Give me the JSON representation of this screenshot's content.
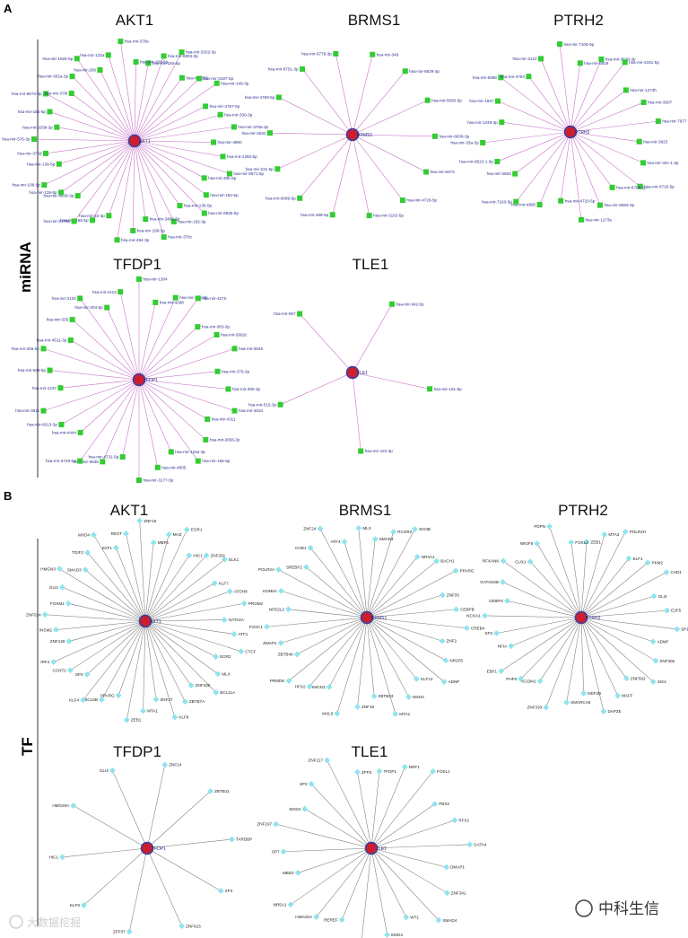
{
  "panels": [
    {
      "letter": "A",
      "row_label": "miRNA"
    },
    {
      "letter": "B",
      "row_label": "TF"
    }
  ],
  "colors": {
    "mirna_node": "#33cc33",
    "tf_node": "#8fe3ef",
    "center_fill": "#cc1e2e",
    "center_stroke": "#3a3fa0",
    "mirna_edge": "#c873c8",
    "tf_edge": "#7a7a7a"
  },
  "networks": [
    {
      "panel": "A",
      "gene": "AKT1",
      "kind": "mirna",
      "nodes": [
        "hsa-mir-150-5p",
        "hsa-mir-6803-3p",
        "hsa-mir-3202-3p",
        "hsa-mir-326",
        "hsa-mir-3187-5p",
        "hsa-mir-149-3p",
        "hsa-mir-4767-5p",
        "hsa-mir-330-3p",
        "hsa-mir-378a-3p",
        "hsa-mir-4690",
        "hsa-mir-125b-5p",
        "hsa-mir-5571-5p",
        "hsa-mir-30b-5p",
        "hsa-mir-184-5p",
        "hsa-mir-6845-5p",
        "hsa-mir-135-5p",
        "hsa-mir-192-3p",
        "hsa-mir-378c",
        "hsa-mir-3460-5p",
        "hsa-mir-196-3p",
        "hsa-mir-494-3p",
        "hsa-mir-22-3p",
        "hsa-mir-155-5p",
        "hsa-mir-3178b",
        "hsa-mir-4638-3p",
        "hsa-mir-129-5p",
        "hsa-mir-106-5p",
        "hsa-mir-139-5p",
        "hsa-mir-378d",
        "hsa-mir-576-3p",
        "hsa-mir-193b-3p",
        "hsa-mir-155-5p",
        "hsa-mir-6873-3p",
        "hsa-mir-378i",
        "hsa-mir-302a-3p",
        "hsa-mir-1825-5p",
        "hsa-mir-208",
        "hsa-mir-122a",
        "hsa-mir-378e",
        "hsa-mir-100-5p"
      ]
    },
    {
      "panel": "A",
      "gene": "BRMS1",
      "kind": "mirna",
      "nodes": [
        "hsa-mir-346",
        "hsa-mir-6829-3p",
        "hsa-mir-5580-5p",
        "hsa-mir-6836-3p",
        "hsa-mir-6073",
        "hsa-mir-4720-5p",
        "hsa-mir-3102-5p",
        "hsa-mir-488-5p",
        "hsa-mir-6089-5p",
        "hsa-mir-221-5p",
        "hsa-mir-4632",
        "hsa-mir-4769-5p",
        "hsa-mir-6751-3p",
        "hsa-mir-6778-3p"
      ]
    },
    {
      "panel": "A",
      "gene": "PTRH2",
      "kind": "mirna",
      "nodes": [
        "hsa-mir-6819",
        "hsa-mir-3620-3p",
        "hsa-mir-3151-5p",
        "hsa-mir-1273h",
        "hsa-mir-3607",
        "hsa-mir-7977",
        "hsa-mir-3923",
        "hsa-mir-33c-1-3p",
        "hsa-mir-6729-5p",
        "hsa-mir-6786-5p",
        "hsa-mir-6893-3p",
        "hsa-mir-1273e",
        "hsa-mir-4720-5p",
        "hsa-mir-4695",
        "hsa-mir-7160-5p",
        "hsa-mir-3663",
        "hsa-mir-6813-1-3p",
        "hsa-mir-33a-3p",
        "hsa-mir-1249-3p",
        "hsa-mir-1827",
        "hsa-mir-6088",
        "hsa-mir-4763",
        "hsa-mir-3122",
        "hsa-mir-7106-5p"
      ]
    },
    {
      "panel": "A",
      "gene": "TFDP1",
      "kind": "mirna",
      "nodes": [
        "hsa-mir-4298",
        "hsa-mir-30b-3p",
        "hsa-mir-4270",
        "hsa-mir-383-3p",
        "hsa-mir-5692c",
        "hsa-mir-3646",
        "hsa-mir-379-3p",
        "hsa-mir-380-3p",
        "hsa-mir-4534",
        "hsa-mir-4311",
        "hsa-mir-3656-3p",
        "hsa-mir-155-5p",
        "hsa-mir-1252-3p",
        "hsa-mir-4505",
        "hsa-mir-3177-5p",
        "hsa-mir-4731-5p",
        "hsa-mir-6635",
        "hsa-mir-3749-5p",
        "hsa-mir-4444",
        "hsa-mir-6013-3p",
        "hsa-mir-3611",
        "hsa-mir-1237",
        "hsa-mir-629-5p",
        "hsa-mir-30a-5p",
        "hsa-mir-4511-3p",
        "hsa-mir-335",
        "hsa-mir-3134",
        "hsa-mir-204-5p",
        "hsa-mir-2113",
        "hsa-mir-1304"
      ]
    },
    {
      "panel": "A",
      "gene": "TLE1",
      "kind": "mirna",
      "nodes": [
        "hsa-mir-942-5p",
        "hsa-mir-191-5p",
        "hsa-mir-423-3p",
        "hsa-mir-515-3p",
        "hsa-mir-657"
      ]
    },
    {
      "panel": "B",
      "gene": "AKT1",
      "kind": "tf",
      "nodes": [
        "MBP1",
        "MAZ",
        "EGR1",
        "HIC1",
        "ZNF281",
        "ELK1",
        "KLF7",
        "ATOH8",
        "PROM2",
        "GATA2A",
        "ATF1",
        "CTCF",
        "EGR2",
        "MLX",
        "BCL11A",
        "ZNF335",
        "ZBTB7A",
        "KLF8",
        "ZNF37",
        "MTA1",
        "ZEB1",
        "PPARG",
        "BCL6B",
        "KLF4",
        "SP3",
        "CCNT2",
        "IRF4",
        "ZNF148",
        "INSM2",
        "ZNF524",
        "FOXM1",
        "GLI2",
        "HMGN3",
        "SMAD3",
        "TGIF2",
        "MXD4",
        "E2F1",
        "REST",
        "ZNF16"
      ]
    },
    {
      "panel": "B",
      "gene": "BRMS1",
      "kind": "tf",
      "nodes": [
        "SMAD4",
        "RCOR2",
        "SIX3B",
        "NR4A1",
        "BACH1",
        "PPARG",
        "ZNF33",
        "CEBPB",
        "CREB4",
        "ZNF2",
        "NR2F6",
        "ADNP",
        "KLF13",
        "MXD4",
        "MTA1",
        "ZBTB33",
        "ZNF18",
        "MXL5",
        "HMGN3",
        "HFX2",
        "PRMDK",
        "ZBTB40",
        "ZMAP1",
        "FOXC1",
        "NFE2L2",
        "KDM5A",
        "POLR2A",
        "SREBF2",
        "CHD1",
        "ZNF24",
        "ATF4",
        "MLX"
      ]
    },
    {
      "panel": "B",
      "gene": "PTRH2",
      "kind": "tf",
      "nodes": [
        "ZEB1",
        "MTA3",
        "POLR2H",
        "ELF1",
        "PKM2",
        "CHD1",
        "GLI4",
        "E2F5",
        "SP1",
        "ADNP",
        "ZNF306",
        "SIX4",
        "ZNF592",
        "MAFF",
        "DAP2E",
        "NEF2D",
        "SMARCA5",
        "ZNF333",
        "KCDM1",
        "PHF8",
        "EBF1",
        "NFIA",
        "SP3",
        "NCOA1",
        "CEBPG",
        "GATAD2B",
        "RFXANK",
        "CUX1",
        "NR2F6",
        "PDPN",
        "FOXL2"
      ]
    },
    {
      "panel": "B",
      "gene": "TFDP1",
      "kind": "tf",
      "nodes": [
        "ZNF24",
        "ZBTB11",
        "TARDBP",
        "ZFX",
        "ZNF423",
        "ZFP37",
        "KLF8",
        "HIC1",
        "HMG20A",
        "GLI4"
      ]
    },
    {
      "panel": "B",
      "gene": "TLE1",
      "kind": "tf",
      "nodes": [
        "TFDP1",
        "NRF1",
        "FOSL1",
        "PBX2",
        "RFX1",
        "GATA4",
        "DMAP1",
        "ZNF341",
        "SMAD4",
        "WT1",
        "MXD3",
        "CREB1",
        "REREF",
        "HMG20A",
        "NR5A1",
        "MBD2",
        "SP7",
        "ZNF197",
        "MXD4",
        "SP2",
        "ZNF217",
        "ZFP3"
      ]
    }
  ],
  "watermark": {
    "text": "大数据挖掘"
  },
  "brand": {
    "text": "中科生信"
  }
}
